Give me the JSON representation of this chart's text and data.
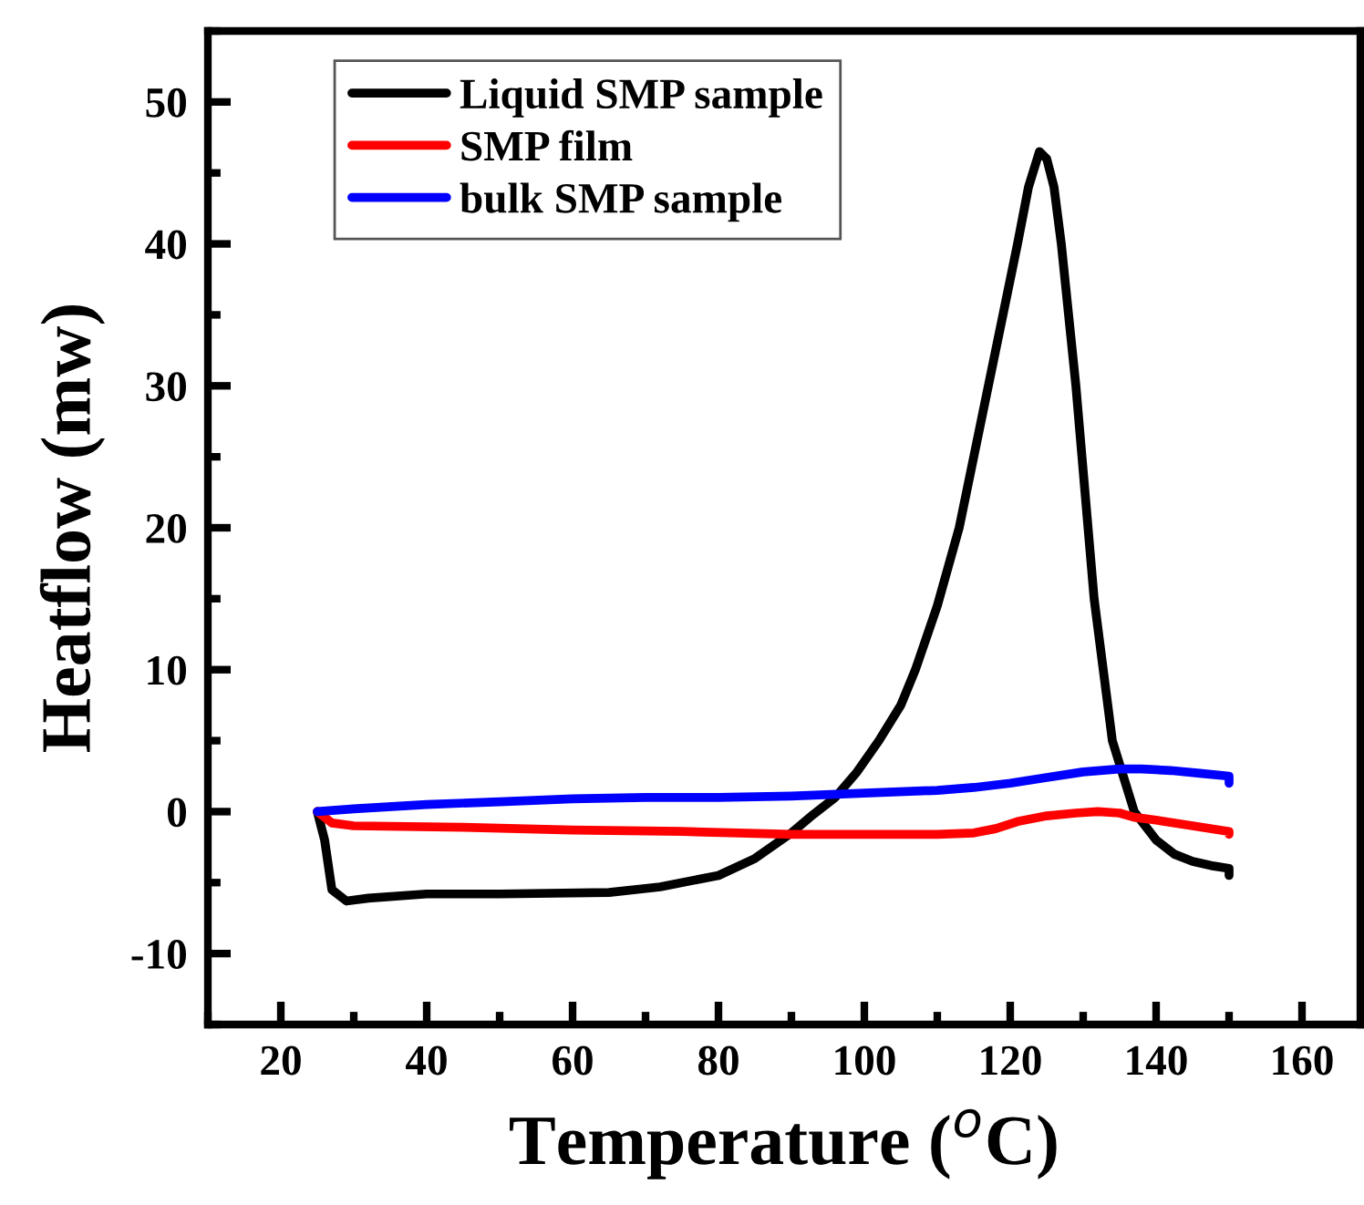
{
  "chart_data": {
    "type": "line",
    "xlabel": "Temperature ($^{o}$C)",
    "ylabel": "Heatflow (mw)",
    "xlim": [
      10,
      168
    ],
    "xticks": [
      20,
      40,
      60,
      80,
      100,
      120,
      140,
      160
    ],
    "ylim": [
      -15,
      55
    ],
    "yticks": [
      -10,
      0,
      10,
      20,
      30,
      40,
      50
    ],
    "grid": false,
    "legend": "top left",
    "marker": "none",
    "line_style": "solid",
    "series": [
      {
        "name": "Liquid SMP sample",
        "color": "#000000",
        "x": [
          25,
          26,
          27,
          29,
          32,
          40,
          50,
          65,
          72,
          80,
          85,
          90,
          93,
          96,
          99,
          102,
          105,
          107,
          110,
          113,
          115,
          117,
          119,
          121,
          122.5,
          124,
          125,
          126,
          127,
          128,
          129,
          130,
          131.5,
          133,
          134,
          135.5,
          137,
          138.5,
          140,
          142.5,
          145,
          147.5,
          150,
          150
        ],
        "values": [
          0,
          -2,
          -5.5,
          -6.3,
          -6.1,
          -5.8,
          -5.8,
          -5.7,
          -5.3,
          -4.5,
          -3.3,
          -1.5,
          -0.2,
          1,
          2.8,
          5,
          7.5,
          10,
          14.5,
          20,
          25,
          30,
          35,
          40,
          44,
          46.5,
          46,
          44,
          40,
          35,
          30,
          24,
          15,
          9,
          5,
          2.5,
          0,
          -1,
          -2,
          -3,
          -3.5,
          -3.8,
          -4,
          -4.5
        ]
      },
      {
        "name": "SMP film",
        "color": "#ff0000",
        "x": [
          25,
          27,
          30,
          45,
          60,
          75,
          90,
          100,
          110,
          115,
          118,
          121,
          125,
          129,
          132,
          135,
          137,
          140,
          145,
          150,
          150
        ],
        "values": [
          0,
          -0.8,
          -1,
          -1.1,
          -1.3,
          -1.4,
          -1.6,
          -1.6,
          -1.6,
          -1.5,
          -1.2,
          -0.7,
          -0.3,
          -0.1,
          0,
          -0.1,
          -0.4,
          -0.6,
          -1,
          -1.4,
          -1.6
        ]
      },
      {
        "name": "bulk SMP sample",
        "color": "#0000ff",
        "x": [
          25,
          30,
          40,
          50,
          60,
          70,
          80,
          90,
          100,
          110,
          115,
          120,
          125,
          130,
          135,
          138,
          142,
          146,
          150,
          150
        ],
        "values": [
          0,
          0.2,
          0.5,
          0.7,
          0.9,
          1,
          1,
          1.1,
          1.3,
          1.5,
          1.7,
          2,
          2.4,
          2.8,
          3,
          3,
          2.9,
          2.7,
          2.5,
          2
        ]
      }
    ]
  }
}
